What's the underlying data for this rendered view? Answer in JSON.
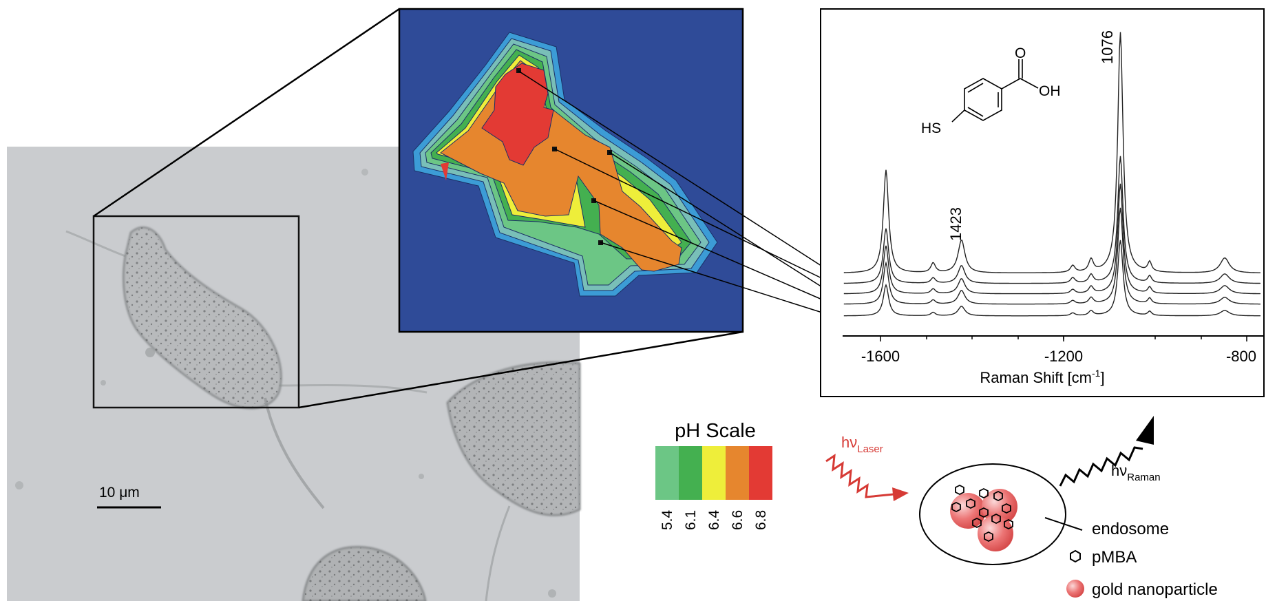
{
  "micrograph": {
    "scale_bar_label": "10 μm"
  },
  "spectrum": {
    "xlabel_main": "Raman Shift [cm",
    "xlabel_sup": "-1",
    "xlabel_end": "]",
    "ticks": [
      "-1600",
      "-1200",
      "-800"
    ],
    "peak_labels": [
      "1076",
      "1423"
    ],
    "molecule": {
      "o_label": "O",
      "oh_label": "OH",
      "hs_label": "HS"
    }
  },
  "ph_scale": {
    "title": "pH Scale",
    "levels": [
      {
        "value": "5.4",
        "color": "#6cc685"
      },
      {
        "value": "6.1",
        "color": "#44b050"
      },
      {
        "value": "6.4",
        "color": "#eeee3a"
      },
      {
        "value": "6.6",
        "color": "#e6862e"
      },
      {
        "value": "6.8",
        "color": "#e33a34"
      }
    ]
  },
  "schematic": {
    "laser_main": "hν",
    "laser_sub": "Laser",
    "raman_main": "hν",
    "raman_sub": "Raman",
    "legend": {
      "endosome": "endosome",
      "pmba": "pMBA",
      "gold": "gold nanoparticle"
    }
  },
  "colors": {
    "map_background": "#2f4b98",
    "laser": "#d63a35",
    "nanoparticle": "#e66c6c"
  }
}
